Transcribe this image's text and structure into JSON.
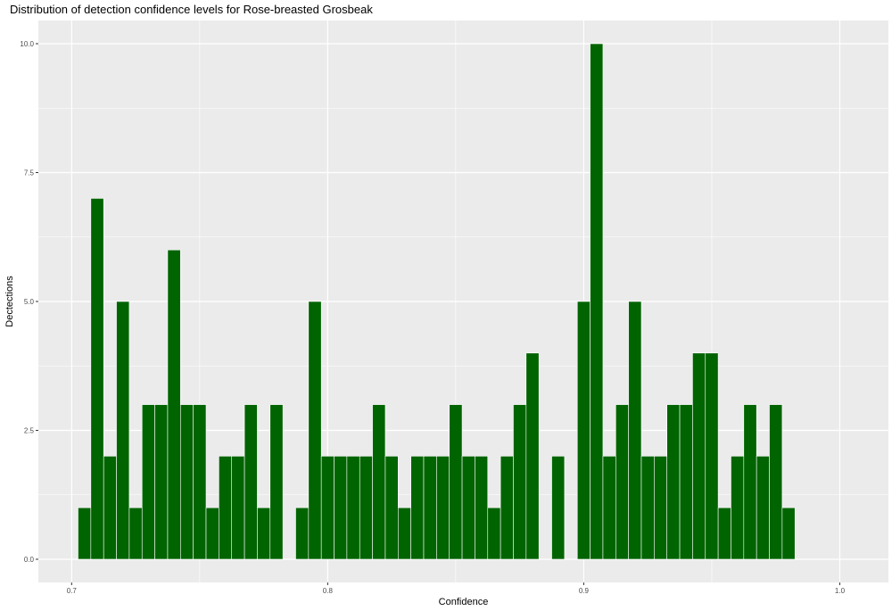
{
  "chart_data": {
    "type": "bar",
    "title": "Distribution of detection confidence levels for Rose-breasted Grosbeak",
    "xlabel": "Confidence",
    "ylabel": "Dectections",
    "xlim": [
      0.687,
      1.019
    ],
    "ylim": [
      -0.45,
      10.45
    ],
    "x_ticks": [
      0.7,
      0.8,
      0.9,
      1.0
    ],
    "x_tick_labels": [
      "0.7",
      "0.8",
      "0.9",
      "1.0"
    ],
    "y_ticks": [
      0,
      2.5,
      5,
      7.5,
      10
    ],
    "y_tick_labels": [
      "0.0",
      "2.5",
      "5.0",
      "7.5",
      "10.0"
    ],
    "bin_width": 0.005,
    "bars": [
      {
        "x": 0.705,
        "y": 1
      },
      {
        "x": 0.71,
        "y": 7
      },
      {
        "x": 0.715,
        "y": 2
      },
      {
        "x": 0.72,
        "y": 5
      },
      {
        "x": 0.725,
        "y": 1
      },
      {
        "x": 0.73,
        "y": 3
      },
      {
        "x": 0.735,
        "y": 3
      },
      {
        "x": 0.74,
        "y": 6
      },
      {
        "x": 0.745,
        "y": 3
      },
      {
        "x": 0.75,
        "y": 3
      },
      {
        "x": 0.755,
        "y": 1
      },
      {
        "x": 0.76,
        "y": 2
      },
      {
        "x": 0.765,
        "y": 2
      },
      {
        "x": 0.77,
        "y": 3
      },
      {
        "x": 0.775,
        "y": 1
      },
      {
        "x": 0.78,
        "y": 3
      },
      {
        "x": 0.79,
        "y": 1
      },
      {
        "x": 0.795,
        "y": 5
      },
      {
        "x": 0.8,
        "y": 2
      },
      {
        "x": 0.805,
        "y": 2
      },
      {
        "x": 0.81,
        "y": 2
      },
      {
        "x": 0.815,
        "y": 2
      },
      {
        "x": 0.82,
        "y": 3
      },
      {
        "x": 0.825,
        "y": 2
      },
      {
        "x": 0.83,
        "y": 1
      },
      {
        "x": 0.835,
        "y": 2
      },
      {
        "x": 0.84,
        "y": 2
      },
      {
        "x": 0.845,
        "y": 2
      },
      {
        "x": 0.85,
        "y": 3
      },
      {
        "x": 0.855,
        "y": 2
      },
      {
        "x": 0.86,
        "y": 2
      },
      {
        "x": 0.865,
        "y": 1
      },
      {
        "x": 0.87,
        "y": 2
      },
      {
        "x": 0.875,
        "y": 3
      },
      {
        "x": 0.88,
        "y": 4
      },
      {
        "x": 0.89,
        "y": 2
      },
      {
        "x": 0.9,
        "y": 5
      },
      {
        "x": 0.905,
        "y": 10
      },
      {
        "x": 0.91,
        "y": 2
      },
      {
        "x": 0.915,
        "y": 3
      },
      {
        "x": 0.92,
        "y": 5
      },
      {
        "x": 0.925,
        "y": 2
      },
      {
        "x": 0.93,
        "y": 2
      },
      {
        "x": 0.935,
        "y": 3
      },
      {
        "x": 0.94,
        "y": 3
      },
      {
        "x": 0.945,
        "y": 4
      },
      {
        "x": 0.95,
        "y": 4
      },
      {
        "x": 0.955,
        "y": 1
      },
      {
        "x": 0.96,
        "y": 2
      },
      {
        "x": 0.965,
        "y": 3
      },
      {
        "x": 0.97,
        "y": 2
      },
      {
        "x": 0.975,
        "y": 3
      },
      {
        "x": 0.98,
        "y": 1
      }
    ],
    "bar_color": "#006400",
    "bar_outline": "#ffffff",
    "panel_background": "#ebebeb",
    "grid": true,
    "legend": "none"
  }
}
